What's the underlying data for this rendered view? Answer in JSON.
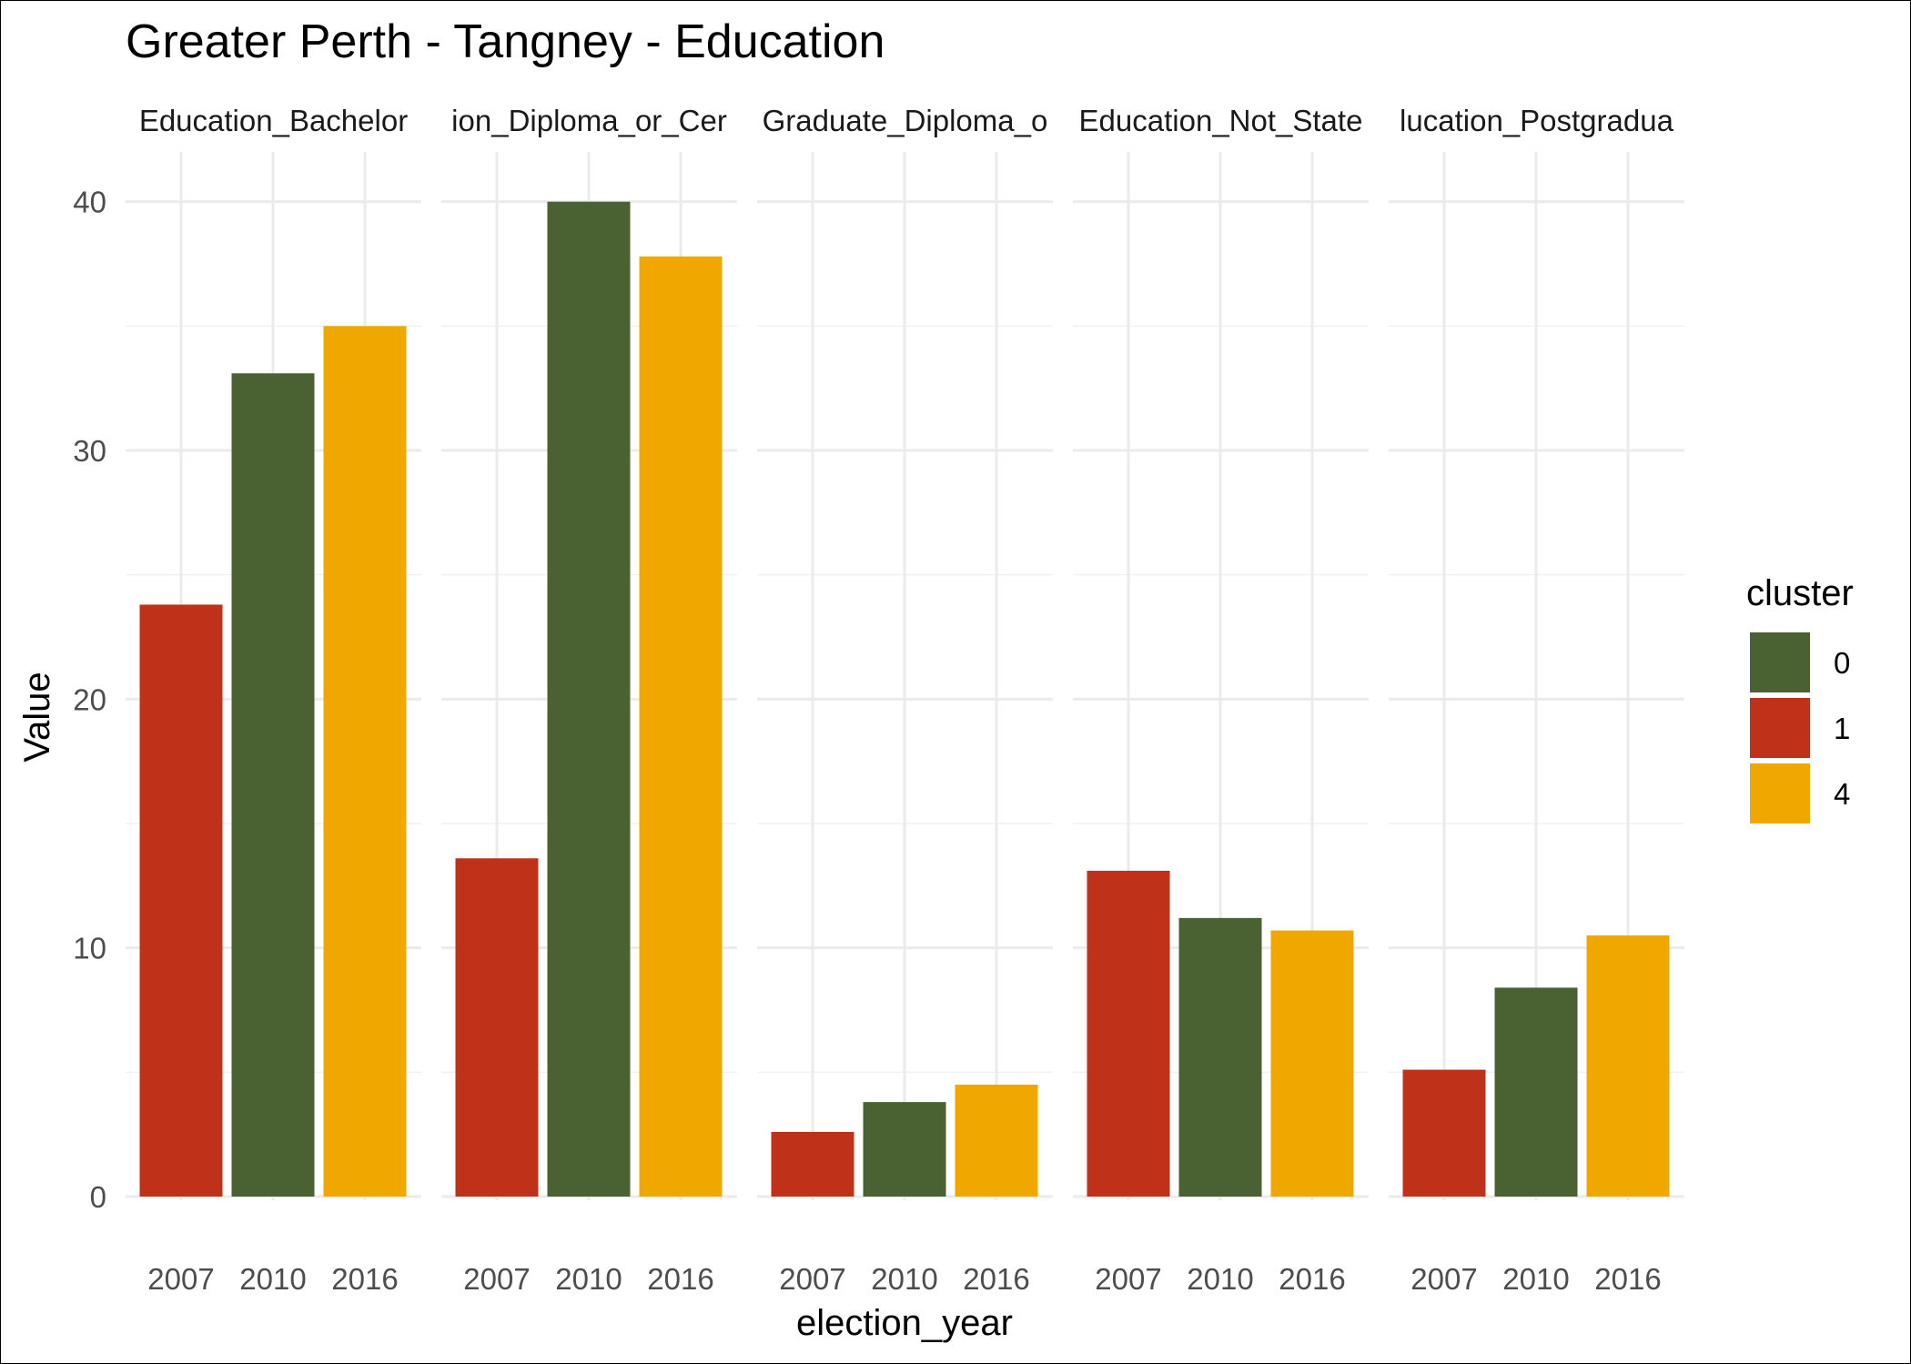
{
  "chart_data": {
    "type": "bar",
    "title": "Greater Perth - Tangney - Education",
    "xlabel": "election_year",
    "ylabel": "Value",
    "ylim": [
      0,
      42
    ],
    "y_ticks": [
      0,
      10,
      20,
      30,
      40
    ],
    "grid": true,
    "categories": [
      "2007",
      "2010",
      "2016"
    ],
    "category_cluster": [
      "1",
      "0",
      "4"
    ],
    "facets": [
      {
        "strip_label": "Education_Bachelor",
        "values": [
          23.8,
          33.1,
          35.0
        ]
      },
      {
        "strip_label": "ion_Diploma_or_Cer",
        "values": [
          13.6,
          40.0,
          37.8
        ]
      },
      {
        "strip_label": "Graduate_Diploma_o",
        "values": [
          2.6,
          3.8,
          4.5
        ]
      },
      {
        "strip_label": "Education_Not_State",
        "values": [
          13.1,
          11.2,
          10.7
        ]
      },
      {
        "strip_label": "lucation_Postgradua",
        "values": [
          5.1,
          8.4,
          10.5
        ]
      }
    ],
    "legend": {
      "title": "cluster",
      "position": "right",
      "entries": [
        {
          "label": "0",
          "color": "#4a6132"
        },
        {
          "label": "1",
          "color": "#c0311a"
        },
        {
          "label": "4",
          "color": "#f0a800"
        }
      ]
    }
  }
}
